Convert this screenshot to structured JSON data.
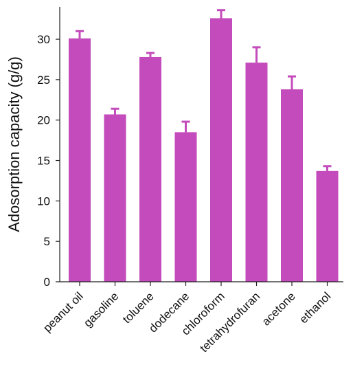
{
  "chart_data": {
    "type": "bar",
    "title": "",
    "xlabel": "",
    "ylabel": "Adosorption capacity (g/g)",
    "ylim": [
      0,
      34
    ],
    "yticks": [
      0,
      5,
      10,
      15,
      20,
      25,
      30
    ],
    "grid": false,
    "legend": "none",
    "bar_color": "#c44bbb",
    "categories": [
      "peanut oil",
      "gasoline",
      "toluene",
      "dodecane",
      "chloroform",
      "tetrahydrofuran",
      "acetone",
      "ethanol"
    ],
    "values": [
      30.1,
      20.7,
      27.8,
      18.5,
      32.6,
      27.1,
      23.8,
      13.7
    ],
    "errors": [
      0.9,
      0.7,
      0.5,
      1.3,
      1.0,
      1.9,
      1.6,
      0.6
    ]
  }
}
